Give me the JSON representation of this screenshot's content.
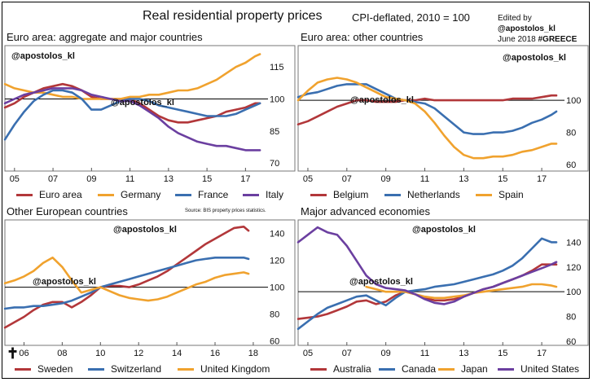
{
  "header": {
    "title": "Real residential property prices",
    "subtitle": "CPI-deflated, 2010 = 100",
    "edited_by": "Edited by",
    "edited_handle": "@apostolos_kl",
    "edited_date": "June 2018",
    "edited_tag": "#GREECE",
    "source": "Source: BIS property prices statistics."
  },
  "watermark": "@apostolos_kl",
  "footer_glyph": "✝",
  "chart_data": [
    {
      "type": "line",
      "title": "Euro area: aggregate and major countries",
      "x_ticks": [
        "05",
        "07",
        "09",
        "11",
        "13",
        "15",
        "17"
      ],
      "y_ticks": [
        70,
        85,
        100,
        115
      ],
      "ylim": [
        67,
        125
      ],
      "reference_line": 100,
      "y_axis_side": "right",
      "series": [
        {
          "name": "Euro area",
          "color": "#b2373a",
          "x": [
            2004.5,
            2005,
            2005.5,
            2006,
            2006.5,
            2007,
            2007.5,
            2008,
            2008.5,
            2009,
            2009.5,
            2010,
            2010.5,
            2011,
            2011.5,
            2012,
            2012.5,
            2013,
            2013.5,
            2014,
            2014.5,
            2015,
            2015.5,
            2016,
            2016.5,
            2017,
            2017.5,
            2017.75
          ],
          "y": [
            96,
            98,
            101,
            103,
            105,
            106,
            107,
            106,
            104,
            101,
            100,
            100,
            100,
            100,
            98,
            95,
            92,
            90,
            89,
            89,
            90,
            91,
            92,
            94,
            95,
            96,
            98,
            98
          ]
        },
        {
          "name": "Germany",
          "color": "#f0a22e",
          "x": [
            2004.5,
            2005,
            2005.5,
            2006,
            2006.5,
            2007,
            2007.5,
            2008,
            2008.5,
            2009,
            2009.5,
            2010,
            2010.5,
            2011,
            2011.5,
            2012,
            2012.5,
            2013,
            2013.5,
            2014,
            2014.5,
            2015,
            2015.5,
            2016,
            2016.5,
            2017,
            2017.5,
            2017.75
          ],
          "y": [
            107,
            105,
            104,
            103,
            103,
            102,
            101,
            101,
            100,
            100,
            100,
            100,
            100,
            101,
            101,
            102,
            102,
            103,
            104,
            104,
            105,
            107,
            109,
            112,
            115,
            117,
            120,
            121
          ]
        },
        {
          "name": "France",
          "color": "#3a6fb0",
          "x": [
            2004.5,
            2005,
            2005.5,
            2006,
            2006.5,
            2007,
            2007.5,
            2008,
            2008.5,
            2009,
            2009.5,
            2010,
            2010.5,
            2011,
            2011.5,
            2012,
            2012.5,
            2013,
            2013.5,
            2014,
            2014.5,
            2015,
            2015.5,
            2016,
            2016.5,
            2017,
            2017.5,
            2017.75
          ],
          "y": [
            81,
            88,
            94,
            99,
            102,
            104,
            104,
            103,
            100,
            95,
            95,
            97,
            99,
            100,
            100,
            99,
            97,
            96,
            95,
            94,
            93,
            92,
            92,
            92,
            93,
            95,
            97,
            98
          ]
        },
        {
          "name": "Italy",
          "color": "#6b3fa0",
          "x": [
            2004.5,
            2005,
            2005.5,
            2006,
            2006.5,
            2007,
            2007.5,
            2008,
            2008.5,
            2009,
            2009.5,
            2010,
            2010.5,
            2011,
            2011.5,
            2012,
            2012.5,
            2013,
            2013.5,
            2014,
            2014.5,
            2015,
            2015.5,
            2016,
            2016.5,
            2017,
            2017.5,
            2017.75
          ],
          "y": [
            98,
            100,
            102,
            103,
            104,
            105,
            105,
            105,
            104,
            102,
            101,
            100,
            99,
            99,
            97,
            94,
            91,
            87,
            84,
            82,
            80,
            79,
            78,
            78,
            77,
            76,
            76,
            76
          ]
        }
      ]
    },
    {
      "type": "line",
      "title": "Euro area: other countries",
      "x_ticks": [
        "05",
        "07",
        "09",
        "11",
        "13",
        "15",
        "17"
      ],
      "y_ticks": [
        60,
        80,
        100
      ],
      "ylim": [
        57,
        134
      ],
      "reference_line": 100,
      "y_axis_side": "right",
      "series": [
        {
          "name": "Belgium",
          "color": "#b2373a",
          "x": [
            2004.5,
            2005,
            2005.5,
            2006,
            2006.5,
            2007,
            2007.5,
            2008,
            2008.5,
            2009,
            2009.5,
            2010,
            2010.5,
            2011,
            2011.5,
            2012,
            2012.5,
            2013,
            2013.5,
            2014,
            2014.5,
            2015,
            2015.5,
            2016,
            2016.5,
            2017,
            2017.5,
            2017.75
          ],
          "y": [
            85,
            87,
            90,
            93,
            96,
            98,
            100,
            100,
            99,
            99,
            99,
            100,
            100,
            101,
            100,
            100,
            100,
            100,
            100,
            100,
            100,
            100,
            101,
            101,
            101,
            102,
            103,
            103
          ]
        },
        {
          "name": "Netherlands",
          "color": "#3a6fb0",
          "x": [
            2004.5,
            2005,
            2005.5,
            2006,
            2006.5,
            2007,
            2007.5,
            2008,
            2008.5,
            2009,
            2009.5,
            2010,
            2010.5,
            2011,
            2011.5,
            2012,
            2012.5,
            2013,
            2013.5,
            2014,
            2014.5,
            2015,
            2015.5,
            2016,
            2016.5,
            2017,
            2017.5,
            2017.75
          ],
          "y": [
            102,
            104,
            105,
            107,
            109,
            110,
            110,
            110,
            107,
            104,
            101,
            100,
            99,
            98,
            95,
            90,
            85,
            80,
            79,
            79,
            80,
            80,
            81,
            83,
            86,
            88,
            91,
            93
          ]
        },
        {
          "name": "Spain",
          "color": "#f0a22e",
          "x": [
            2004.5,
            2005,
            2005.5,
            2006,
            2006.5,
            2007,
            2007.5,
            2008,
            2008.5,
            2009,
            2009.5,
            2010,
            2010.5,
            2011,
            2011.5,
            2012,
            2012.5,
            2013,
            2013.5,
            2014,
            2014.5,
            2015,
            2015.5,
            2016,
            2016.5,
            2017,
            2017.5,
            2017.75
          ],
          "y": [
            100,
            106,
            111,
            113,
            114,
            113,
            111,
            108,
            105,
            102,
            101,
            100,
            98,
            93,
            86,
            78,
            71,
            66,
            64,
            64,
            65,
            65,
            66,
            68,
            69,
            71,
            73,
            73
          ]
        }
      ]
    },
    {
      "type": "line",
      "title": "Other European countries",
      "x_ticks": [
        "06",
        "08",
        "10",
        "12",
        "14",
        "16",
        "18"
      ],
      "y_ticks": [
        60,
        80,
        100,
        120,
        140
      ],
      "ylim": [
        58,
        150
      ],
      "reference_line": 100,
      "y_axis_side": "right",
      "series": [
        {
          "name": "Sweden",
          "color": "#b2373a",
          "x": [
            2005,
            2005.5,
            2006,
            2006.5,
            2007,
            2007.5,
            2008,
            2008.5,
            2009,
            2009.5,
            2010,
            2010.5,
            2011,
            2011.5,
            2012,
            2012.5,
            2013,
            2013.5,
            2014,
            2014.5,
            2015,
            2015.5,
            2016,
            2016.5,
            2017,
            2017.5,
            2017.75
          ],
          "y": [
            70,
            74,
            78,
            83,
            87,
            89,
            89,
            85,
            89,
            94,
            100,
            101,
            101,
            100,
            102,
            105,
            108,
            112,
            117,
            122,
            127,
            132,
            136,
            140,
            144,
            145,
            142
          ]
        },
        {
          "name": "Switzerland",
          "color": "#3a6fb0",
          "x": [
            2005,
            2005.5,
            2006,
            2006.5,
            2007,
            2007.5,
            2008,
            2008.5,
            2009,
            2009.5,
            2010,
            2010.5,
            2011,
            2011.5,
            2012,
            2012.5,
            2013,
            2013.5,
            2014,
            2014.5,
            2015,
            2015.5,
            2016,
            2016.5,
            2017,
            2017.5,
            2017.75
          ],
          "y": [
            84,
            85,
            85,
            86,
            86,
            87,
            88,
            90,
            93,
            96,
            100,
            102,
            104,
            106,
            108,
            110,
            112,
            114,
            116,
            118,
            120,
            121,
            122,
            122,
            122,
            122,
            121
          ]
        },
        {
          "name": "United Kingdom",
          "color": "#f0a22e",
          "x": [
            2005,
            2005.5,
            2006,
            2006.5,
            2007,
            2007.5,
            2008,
            2008.5,
            2009,
            2009.5,
            2010,
            2010.5,
            2011,
            2011.5,
            2012,
            2012.5,
            2013,
            2013.5,
            2014,
            2014.5,
            2015,
            2015.5,
            2016,
            2016.5,
            2017,
            2017.5,
            2017.75
          ],
          "y": [
            103,
            105,
            108,
            112,
            118,
            122,
            115,
            105,
            96,
            98,
            100,
            97,
            94,
            92,
            91,
            90,
            91,
            93,
            96,
            99,
            102,
            104,
            107,
            109,
            110,
            111,
            110
          ]
        }
      ]
    },
    {
      "type": "line",
      "title": "Major advanced economies",
      "x_ticks": [
        "05",
        "07",
        "09",
        "11",
        "13",
        "15",
        "17"
      ],
      "y_ticks": [
        60,
        80,
        100,
        120,
        140
      ],
      "ylim": [
        58,
        158
      ],
      "reference_line": 100,
      "y_axis_side": "right",
      "series": [
        {
          "name": "Australia",
          "color": "#b2373a",
          "x": [
            2004.5,
            2005,
            2005.5,
            2006,
            2006.5,
            2007,
            2007.5,
            2008,
            2008.5,
            2009,
            2009.5,
            2010,
            2010.5,
            2011,
            2011.5,
            2012,
            2012.5,
            2013,
            2013.5,
            2014,
            2014.5,
            2015,
            2015.5,
            2016,
            2016.5,
            2017,
            2017.5,
            2017.75
          ],
          "y": [
            78,
            79,
            80,
            82,
            85,
            88,
            92,
            93,
            90,
            92,
            97,
            100,
            98,
            95,
            93,
            93,
            94,
            96,
            99,
            102,
            104,
            107,
            110,
            113,
            117,
            122,
            122,
            122
          ]
        },
        {
          "name": "Canada",
          "color": "#3a6fb0",
          "x": [
            2004.5,
            2005,
            2005.5,
            2006,
            2006.5,
            2007,
            2007.5,
            2008,
            2008.5,
            2009,
            2009.5,
            2010,
            2010.5,
            2011,
            2011.5,
            2012,
            2012.5,
            2013,
            2013.5,
            2014,
            2014.5,
            2015,
            2015.5,
            2016,
            2016.5,
            2017,
            2017.5,
            2017.75
          ],
          "y": [
            70,
            76,
            82,
            87,
            90,
            93,
            96,
            97,
            93,
            89,
            95,
            100,
            101,
            102,
            104,
            105,
            106,
            108,
            110,
            112,
            114,
            117,
            121,
            127,
            135,
            143,
            140,
            140
          ]
        },
        {
          "name": "Japan",
          "color": "#f0a22e",
          "x": [
            2008,
            2008.5,
            2009,
            2009.5,
            2010,
            2010.5,
            2011,
            2011.5,
            2012,
            2012.5,
            2013,
            2013.5,
            2014,
            2014.5,
            2015,
            2015.5,
            2016,
            2016.5,
            2017,
            2017.5,
            2017.75
          ],
          "y": [
            104,
            102,
            100,
            100,
            100,
            98,
            96,
            95,
            95,
            96,
            97,
            99,
            100,
            101,
            102,
            103,
            104,
            106,
            106,
            105,
            104
          ]
        },
        {
          "name": "United States",
          "color": "#6b3fa0",
          "x": [
            2004.5,
            2005,
            2005.5,
            2006,
            2006.5,
            2007,
            2007.5,
            2008,
            2008.5,
            2009,
            2009.5,
            2010,
            2010.5,
            2011,
            2011.5,
            2012,
            2012.5,
            2013,
            2013.5,
            2014,
            2014.5,
            2015,
            2015.5,
            2016,
            2016.5,
            2017,
            2017.5,
            2017.75
          ],
          "y": [
            140,
            146,
            152,
            148,
            146,
            137,
            125,
            113,
            106,
            103,
            102,
            101,
            98,
            94,
            91,
            90,
            92,
            96,
            99,
            102,
            104,
            107,
            110,
            113,
            116,
            119,
            122,
            124
          ]
        }
      ]
    }
  ]
}
